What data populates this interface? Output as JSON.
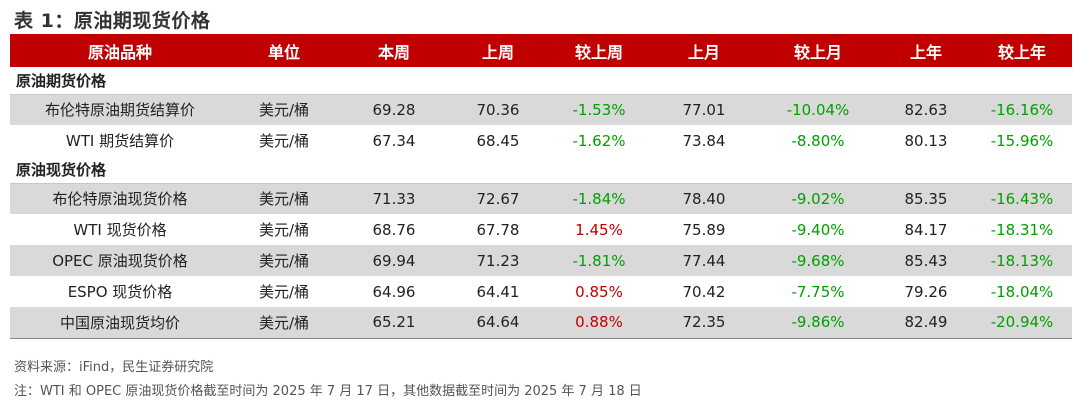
{
  "title": "表 1：原油期现货价格",
  "headers": [
    "原油品种",
    "单位",
    "本周",
    "上周",
    "较上周",
    "上月",
    "较上月",
    "上年",
    "较上年"
  ],
  "sections": [
    {
      "label": "原油期货价格",
      "rows": [
        {
          "name": "布伦特原油期货结算价",
          "unit": "美元/桶",
          "this_week": "69.28",
          "last_week": "70.36",
          "vs_week": "-1.53%",
          "last_month": "77.01",
          "vs_month": "-10.04%",
          "last_year": "82.63",
          "vs_year": "-16.16%"
        },
        {
          "name": "WTI 期货结算价",
          "unit": "美元/桶",
          "this_week": "67.34",
          "last_week": "68.45",
          "vs_week": "-1.62%",
          "last_month": "73.84",
          "vs_month": "-8.80%",
          "last_year": "80.13",
          "vs_year": "-15.96%"
        }
      ]
    },
    {
      "label": "原油现货价格",
      "rows": [
        {
          "name": "布伦特原油现货价格",
          "unit": "美元/桶",
          "this_week": "71.33",
          "last_week": "72.67",
          "vs_week": "-1.84%",
          "last_month": "78.40",
          "vs_month": "-9.02%",
          "last_year": "85.35",
          "vs_year": "-16.43%"
        },
        {
          "name": "WTI 现货价格",
          "unit": "美元/桶",
          "this_week": "68.76",
          "last_week": "67.78",
          "vs_week": "1.45%",
          "last_month": "75.89",
          "vs_month": "-9.40%",
          "last_year": "84.17",
          "vs_year": "-18.31%"
        },
        {
          "name": "OPEC 原油现货价格",
          "unit": "美元/桶",
          "this_week": "69.94",
          "last_week": "71.23",
          "vs_week": "-1.81%",
          "last_month": "77.44",
          "vs_month": "-9.68%",
          "last_year": "85.43",
          "vs_year": "-18.13%"
        },
        {
          "name": "ESPO 现货价格",
          "unit": "美元/桶",
          "this_week": "64.96",
          "last_week": "64.41",
          "vs_week": "0.85%",
          "last_month": "70.42",
          "vs_month": "-7.75%",
          "last_year": "79.26",
          "vs_year": "-18.04%"
        },
        {
          "name": "中国原油现货均价",
          "unit": "美元/桶",
          "this_week": "65.21",
          "last_week": "64.64",
          "vs_week": "0.88%",
          "last_month": "72.35",
          "vs_month": "-9.86%",
          "last_year": "82.49",
          "vs_year": "-20.94%"
        }
      ]
    }
  ],
  "colors": {
    "header_bg": "#c00000",
    "positive": "#c00000",
    "negative": "#00a000",
    "shade": "#d9d9d9"
  },
  "source": "资料来源：iFind，民生证券研究院",
  "note": "注：WTI 和 OPEC 原油现货价格截至时间为 2025 年 7 月 17 日，其他数据截至时间为 2025 年 7 月 18 日"
}
